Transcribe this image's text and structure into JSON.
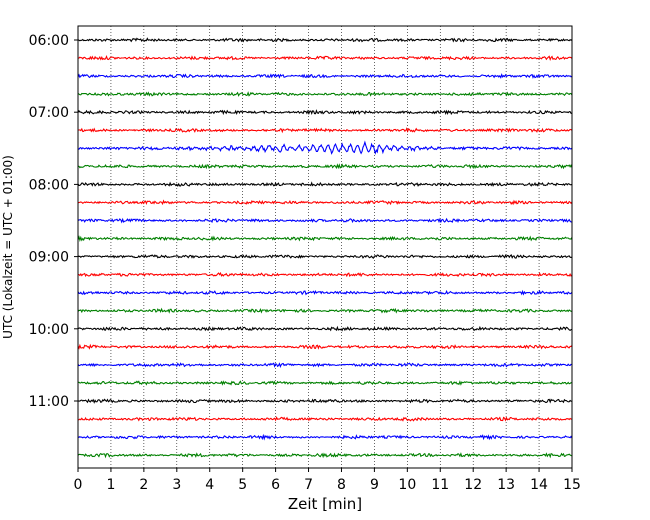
{
  "chart_data": {
    "type": "line",
    "subtype": "helicorder",
    "title": "",
    "xlabel": "Zeit  [min]",
    "ylabel": "UTC (Lokalzeit = UTC + 01:00)",
    "xlim": [
      0,
      15
    ],
    "x_ticks": [
      "0",
      "1",
      "2",
      "3",
      "4",
      "5",
      "6",
      "7",
      "8",
      "9",
      "10",
      "11",
      "12",
      "13",
      "14",
      "15"
    ],
    "y_tick_labels": [
      "06:00",
      "07:00",
      "08:00",
      "09:00",
      "10:00",
      "11:00"
    ],
    "trace_interval_minutes": 15,
    "trace_start": "06:00",
    "trace_count": 24,
    "trace_colors": [
      "#000000",
      "#ff0000",
      "#0000ff",
      "#008000"
    ],
    "x_grid": "dotted vertical lines at each minute",
    "events": [
      {
        "trace_start": "07:30",
        "x_start_min": 2.9,
        "x_end_min": 11.0,
        "peak_min": 8.7,
        "relative_amplitude": 7
      }
    ]
  }
}
